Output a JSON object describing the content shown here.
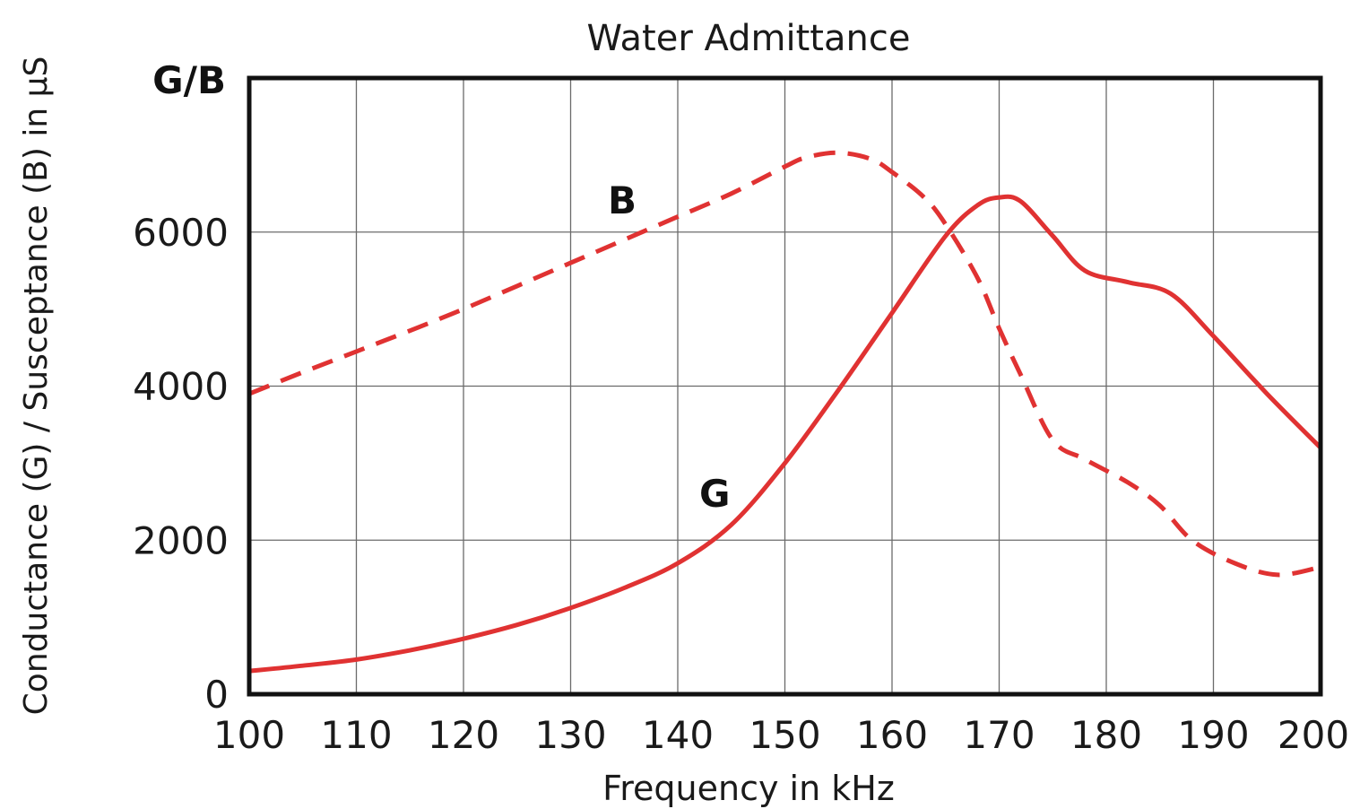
{
  "chart_data": {
    "type": "line",
    "title": "Water Admittance",
    "xlabel": "Frequency in kHz",
    "ylabel": "Conductance (G) / Susceptance (B) in µS",
    "y_unit_label": "G/B",
    "xlim": [
      100,
      200
    ],
    "ylim": [
      0,
      8000
    ],
    "x_ticks": [
      "100",
      "110",
      "120",
      "130",
      "140",
      "150",
      "160",
      "170",
      "180",
      "190",
      "200"
    ],
    "y_ticks": [
      "0",
      "2000",
      "4000",
      "6000"
    ],
    "grid": true,
    "series": [
      {
        "name": "G",
        "style": "solid",
        "color": "#e03232",
        "x": [
          100,
          105,
          110,
          115,
          120,
          125,
          130,
          135,
          140,
          145,
          150,
          155,
          160,
          165,
          168,
          170,
          172,
          175,
          178,
          182,
          186,
          190,
          195,
          200
        ],
        "y": [
          300,
          370,
          450,
          570,
          720,
          900,
          1120,
          1380,
          1700,
          2200,
          3000,
          3950,
          4950,
          5950,
          6350,
          6450,
          6400,
          5950,
          5500,
          5350,
          5200,
          4650,
          3900,
          3200
        ]
      },
      {
        "name": "B",
        "style": "dashed",
        "color": "#e03232",
        "x": [
          100,
          105,
          110,
          115,
          120,
          125,
          130,
          135,
          140,
          145,
          150,
          152,
          155,
          158,
          160,
          163,
          165,
          168,
          170,
          172,
          175,
          178,
          182,
          185,
          188,
          192,
          196,
          200
        ],
        "y": [
          3900,
          4180,
          4450,
          4720,
          5000,
          5300,
          5600,
          5900,
          6200,
          6500,
          6850,
          6970,
          7030,
          6950,
          6780,
          6450,
          6100,
          5400,
          4750,
          4150,
          3300,
          3050,
          2750,
          2450,
          2000,
          1700,
          1550,
          1650
        ]
      }
    ]
  }
}
